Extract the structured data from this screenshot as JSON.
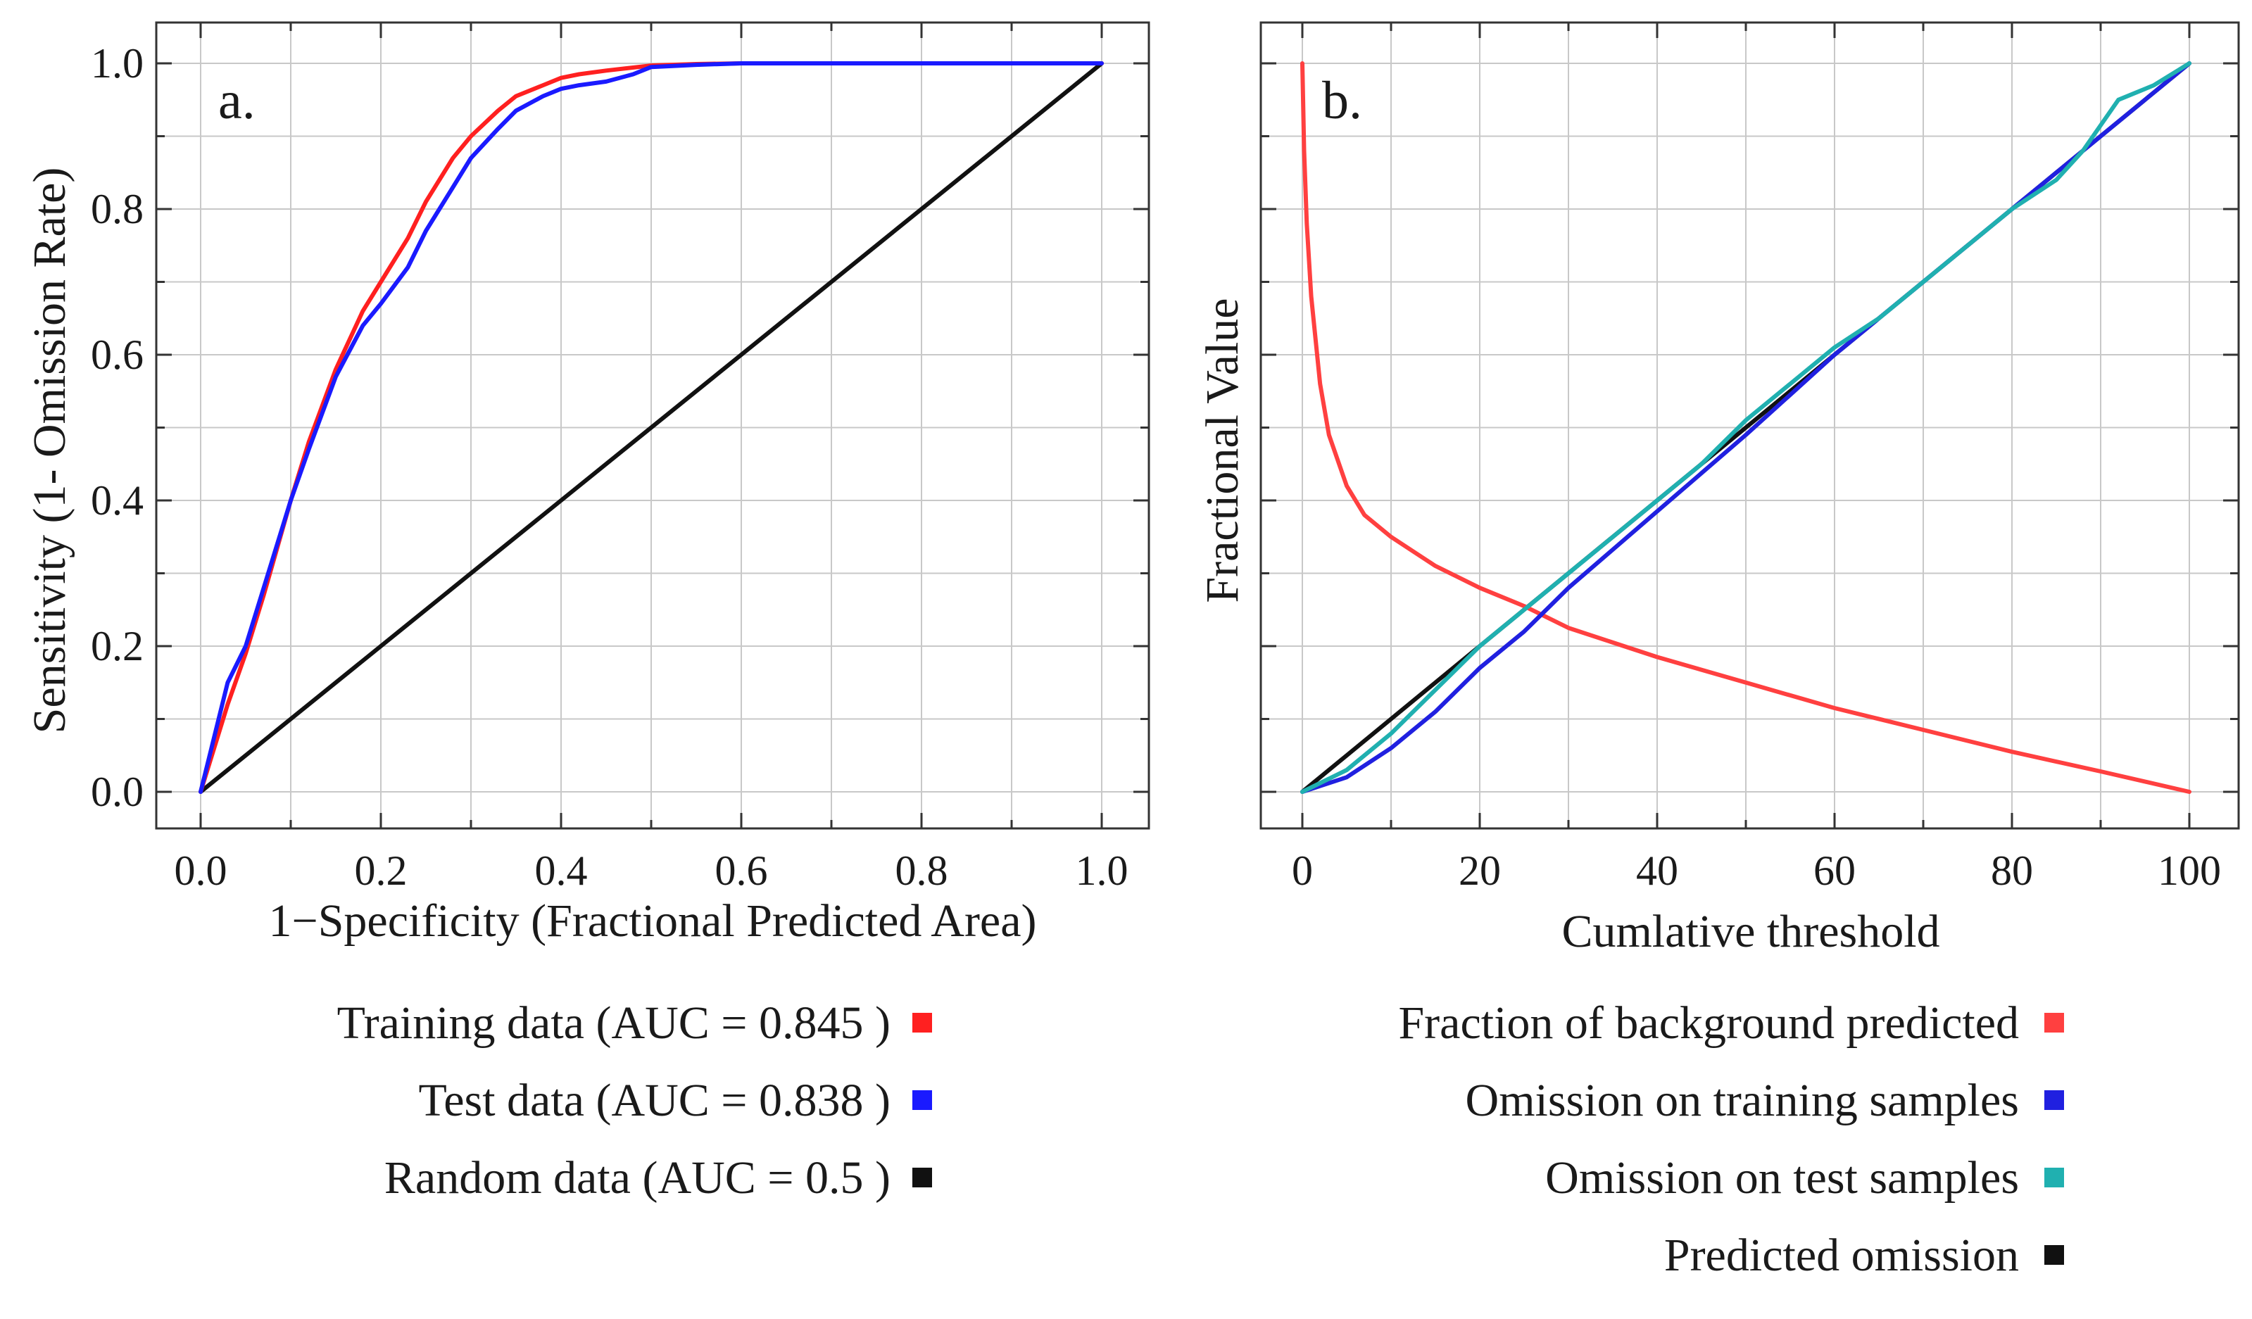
{
  "chart_data": [
    {
      "type": "line",
      "panel_label": "a.",
      "xlabel": "1−Specificity (Fractional Predicted Area)",
      "ylabel": "Sensitivity (1- Omission Rate)",
      "xlim": [
        0,
        1
      ],
      "ylim": [
        0,
        1
      ],
      "xticks": [
        "0.0",
        "0.2",
        "0.4",
        "0.6",
        "0.8",
        "1.0"
      ],
      "yticks": [
        "0.0",
        "0.2",
        "0.4",
        "0.6",
        "0.8",
        "1.0"
      ],
      "grid": true,
      "series": [
        {
          "name": "Training data",
          "legend": "Training data (AUC = 0.845 )",
          "color": "#ff2020",
          "x": [
            0,
            0.01,
            0.02,
            0.03,
            0.05,
            0.07,
            0.1,
            0.12,
            0.15,
            0.18,
            0.2,
            0.23,
            0.25,
            0.28,
            0.3,
            0.33,
            0.35,
            0.38,
            0.4,
            0.42,
            0.45,
            0.5,
            0.55,
            0.6,
            0.7,
            0.8,
            0.9,
            1.0
          ],
          "values": [
            0,
            0.04,
            0.08,
            0.12,
            0.19,
            0.27,
            0.4,
            0.48,
            0.58,
            0.66,
            0.7,
            0.76,
            0.81,
            0.87,
            0.9,
            0.935,
            0.955,
            0.97,
            0.98,
            0.985,
            0.99,
            0.997,
            0.999,
            1.0,
            1.0,
            1.0,
            1.0,
            1.0
          ]
        },
        {
          "name": "Test data",
          "legend": "Test data (AUC = 0.838 )",
          "color": "#1a1aff",
          "x": [
            0,
            0.01,
            0.02,
            0.03,
            0.05,
            0.07,
            0.1,
            0.12,
            0.15,
            0.18,
            0.2,
            0.23,
            0.25,
            0.28,
            0.3,
            0.33,
            0.35,
            0.38,
            0.4,
            0.42,
            0.45,
            0.48,
            0.5,
            0.55,
            0.6,
            0.7,
            0.8,
            0.9,
            1.0
          ],
          "values": [
            0,
            0.05,
            0.1,
            0.15,
            0.2,
            0.28,
            0.4,
            0.47,
            0.57,
            0.64,
            0.67,
            0.72,
            0.77,
            0.83,
            0.87,
            0.91,
            0.935,
            0.955,
            0.965,
            0.97,
            0.975,
            0.985,
            0.995,
            0.998,
            1.0,
            1.0,
            1.0,
            1.0,
            1.0
          ]
        },
        {
          "name": "Random data",
          "legend": "Random data (AUC = 0.5 )",
          "color": "#111111",
          "x": [
            0,
            1
          ],
          "values": [
            0,
            1
          ]
        }
      ]
    },
    {
      "type": "line",
      "panel_label": "b.",
      "xlabel": "Cumlative threshold",
      "ylabel": "Fractional Value",
      "xlim": [
        0,
        100
      ],
      "ylim": [
        0,
        1
      ],
      "xticks": [
        "0",
        "20",
        "40",
        "60",
        "80",
        "100"
      ],
      "grid": true,
      "series": [
        {
          "name": "Fraction of background predicted",
          "legend": "Fraction of background predicted",
          "color": "#ff4040",
          "x": [
            0,
            0.2,
            0.5,
            1,
            2,
            3,
            5,
            7,
            10,
            15,
            20,
            25,
            30,
            40,
            50,
            60,
            70,
            80,
            90,
            100
          ],
          "values": [
            1.0,
            0.88,
            0.78,
            0.68,
            0.56,
            0.49,
            0.42,
            0.38,
            0.35,
            0.31,
            0.28,
            0.255,
            0.225,
            0.185,
            0.15,
            0.115,
            0.085,
            0.055,
            0.028,
            0.0
          ]
        },
        {
          "name": "Omission on training samples",
          "legend": "Omission on training samples",
          "color": "#2020e0",
          "x": [
            0,
            5,
            10,
            15,
            20,
            25,
            30,
            40,
            50,
            60,
            70,
            80,
            90,
            100
          ],
          "values": [
            0,
            0.02,
            0.06,
            0.11,
            0.17,
            0.22,
            0.28,
            0.385,
            0.49,
            0.6,
            0.7,
            0.8,
            0.9,
            1.0
          ]
        },
        {
          "name": "Omission on test samples",
          "legend": "Omission on test samples",
          "color": "#20b0b0",
          "x": [
            0,
            5,
            10,
            15,
            20,
            25,
            30,
            35,
            40,
            45,
            50,
            55,
            60,
            65,
            70,
            75,
            80,
            85,
            88,
            92,
            96,
            100
          ],
          "values": [
            0,
            0.03,
            0.08,
            0.14,
            0.2,
            0.25,
            0.3,
            0.35,
            0.4,
            0.45,
            0.51,
            0.56,
            0.61,
            0.65,
            0.7,
            0.75,
            0.8,
            0.84,
            0.88,
            0.95,
            0.97,
            1.0
          ]
        },
        {
          "name": "Predicted omission",
          "legend": "Predicted omission",
          "color": "#111111",
          "x": [
            0,
            100
          ],
          "values": [
            0,
            1
          ]
        }
      ]
    }
  ]
}
